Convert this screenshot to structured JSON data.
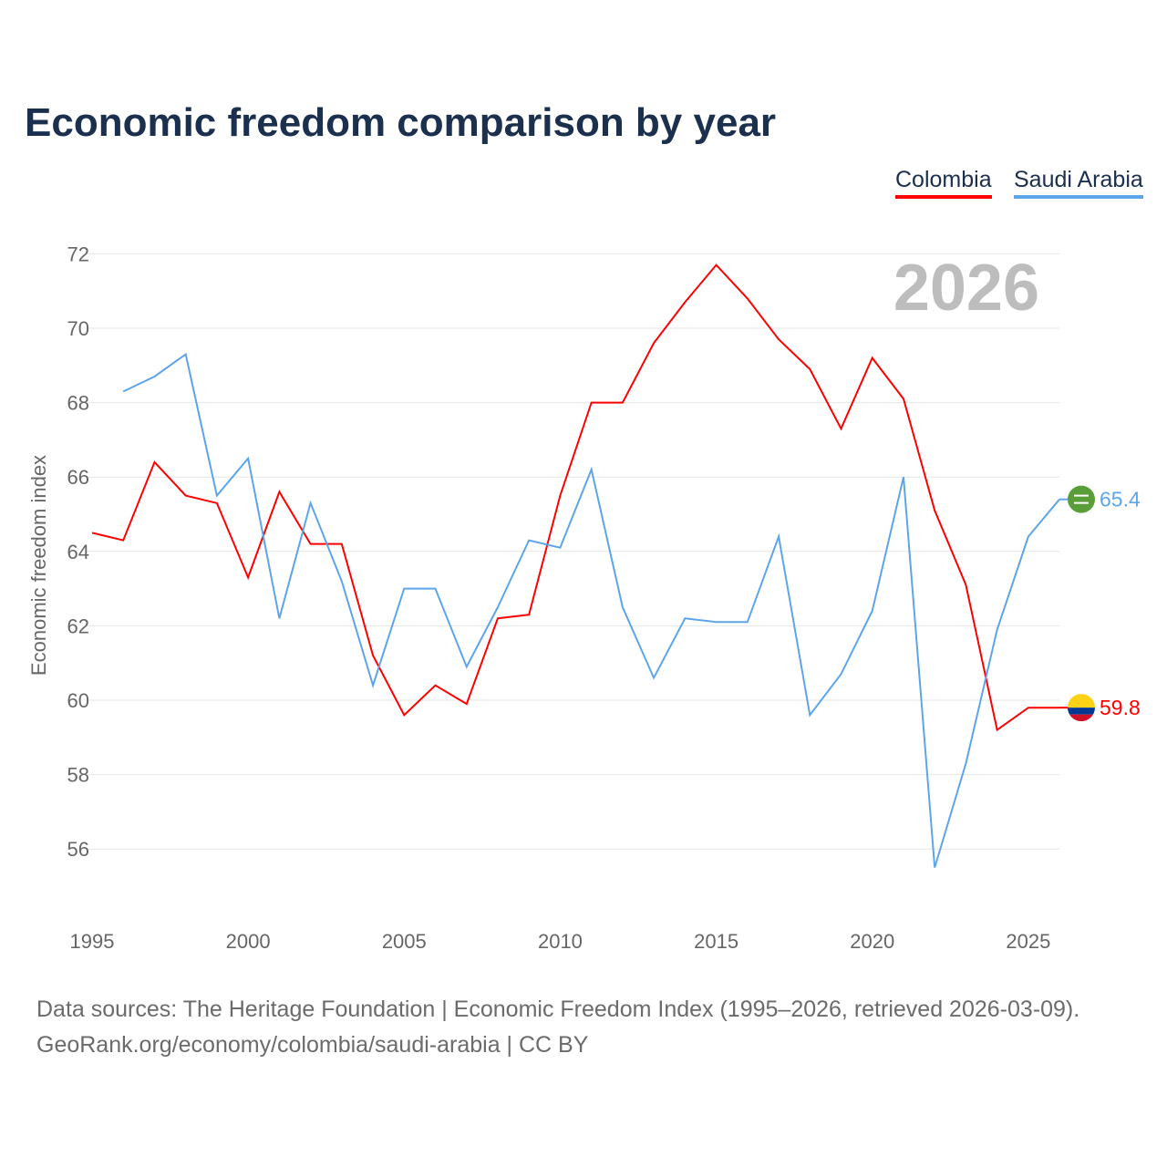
{
  "title": "Economic freedom comparison by year",
  "legend": [
    {
      "name": "Colombia",
      "color": "#ff0000"
    },
    {
      "name": "Saudi Arabia",
      "color": "#5da5ea"
    }
  ],
  "year_watermark": "2026",
  "footer": {
    "line1": "Data sources: The Heritage Foundation | Economic Freedom Index (1995–2026, retrieved 2026-03-09).",
    "line2": "GeoRank.org/economy/colombia/saudi-arabia | CC BY"
  },
  "chart_data": {
    "type": "line",
    "title": "Economic freedom comparison by year",
    "xlabel": "",
    "ylabel": "Economic freedom index",
    "xlim": [
      1995,
      2026
    ],
    "ylim": [
      55,
      72.5
    ],
    "x_ticks": [
      "1995",
      "2000",
      "2005",
      "2010",
      "2015",
      "2020",
      "2025"
    ],
    "y_ticks": [
      "56",
      "58",
      "60",
      "62",
      "64",
      "66",
      "68",
      "70",
      "72"
    ],
    "grid": true,
    "legend_position": "top-right",
    "series": [
      {
        "name": "Colombia",
        "color": "#ff0000",
        "end_label": "59.8",
        "x": [
          1995,
          1996,
          1997,
          1998,
          1999,
          2000,
          2001,
          2002,
          2003,
          2004,
          2005,
          2006,
          2007,
          2008,
          2009,
          2010,
          2011,
          2012,
          2013,
          2014,
          2015,
          2016,
          2017,
          2018,
          2019,
          2020,
          2021,
          2022,
          2023,
          2024,
          2025,
          2026
        ],
        "values": [
          64.5,
          64.3,
          66.4,
          65.5,
          65.3,
          63.3,
          65.6,
          64.2,
          64.2,
          61.2,
          59.6,
          60.4,
          59.9,
          62.2,
          62.3,
          65.5,
          68.0,
          68.0,
          69.6,
          70.7,
          71.7,
          70.8,
          69.7,
          68.9,
          67.3,
          69.2,
          68.1,
          65.1,
          63.1,
          59.2,
          59.8,
          59.8
        ]
      },
      {
        "name": "Saudi Arabia",
        "color": "#5da5ea",
        "end_label": "65.4",
        "x": [
          1996,
          1997,
          1998,
          1999,
          2000,
          2001,
          2002,
          2003,
          2004,
          2005,
          2006,
          2007,
          2008,
          2009,
          2010,
          2011,
          2012,
          2013,
          2014,
          2015,
          2016,
          2017,
          2018,
          2019,
          2020,
          2021,
          2022,
          2023,
          2024,
          2025,
          2026
        ],
        "values": [
          68.3,
          68.7,
          69.3,
          65.5,
          66.5,
          62.2,
          65.3,
          63.2,
          60.4,
          63.0,
          63.0,
          60.9,
          62.5,
          64.3,
          64.1,
          66.2,
          62.5,
          60.6,
          62.2,
          62.1,
          62.1,
          64.4,
          59.6,
          60.7,
          62.4,
          66.0,
          55.5,
          58.3,
          61.9,
          64.4,
          65.4
        ]
      }
    ]
  }
}
